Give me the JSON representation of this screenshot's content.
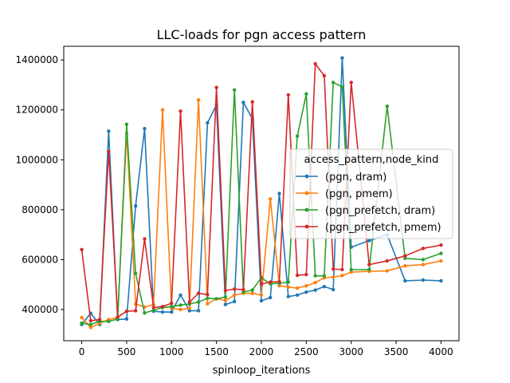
{
  "chart_data": {
    "type": "line",
    "title": "LLC-loads for pgn access pattern",
    "xlabel": "spinloop_iterations",
    "ylabel": "",
    "xlim": [
      -200,
      4200
    ],
    "ylim": [
      275000,
      1455000
    ],
    "xticks": [
      0,
      500,
      1000,
      1500,
      2000,
      2500,
      3000,
      3500,
      4000
    ],
    "xtick_labels": [
      "0",
      "500",
      "1000",
      "1500",
      "2000",
      "2500",
      "3000",
      "3500",
      "4000"
    ],
    "yticks": [
      400000,
      600000,
      800000,
      1000000,
      1200000,
      1400000
    ],
    "ytick_labels": [
      "400000",
      "600000",
      "800000",
      "1000000",
      "1200000",
      "1400000"
    ],
    "grid": false,
    "legend": {
      "title": "access_pattern,node_kind",
      "placement": "center-right"
    },
    "series": [
      {
        "name": "(pgn, dram)",
        "color": "#1f77b4",
        "x": [
          0,
          100,
          200,
          300,
          400,
          500,
          600,
          700,
          800,
          900,
          1000,
          1100,
          1200,
          1300,
          1400,
          1500,
          1600,
          1700,
          1800,
          1900,
          2000,
          2100,
          2200,
          2300,
          2400,
          2500,
          2600,
          2700,
          2800,
          2900,
          3000,
          3200,
          3400,
          3600,
          3800,
          4000
        ],
        "y": [
          340000,
          385000,
          340000,
          1115000,
          360000,
          362000,
          815000,
          1125000,
          393000,
          390000,
          390000,
          458000,
          395000,
          395000,
          1148000,
          1220000,
          420000,
          432000,
          1230000,
          1165000,
          435000,
          448000,
          865000,
          452000,
          458000,
          470000,
          478000,
          492000,
          480000,
          1408000,
          650000,
          676000,
          700000,
          515000,
          518000,
          515000
        ]
      },
      {
        "name": "(pgn, pmem)",
        "color": "#ff7f0e",
        "x": [
          0,
          100,
          200,
          300,
          400,
          500,
          600,
          700,
          800,
          900,
          1000,
          1100,
          1200,
          1300,
          1400,
          1500,
          1600,
          1700,
          1800,
          1900,
          2000,
          2100,
          2200,
          2300,
          2400,
          2500,
          2600,
          2700,
          2800,
          2900,
          3000,
          3200,
          3400,
          3600,
          3800,
          4000
        ],
        "y": [
          368000,
          328000,
          345000,
          360000,
          368000,
          1107000,
          422000,
          410000,
          420000,
          1200000,
          405000,
          400000,
          405000,
          1240000,
          423000,
          443000,
          436000,
          458000,
          465000,
          465000,
          458000,
          843000,
          495000,
          490000,
          486000,
          495000,
          508000,
          527000,
          530000,
          536000,
          550000,
          553000,
          555000,
          575000,
          580000,
          595000
        ]
      },
      {
        "name": "(pgn_prefetch, dram)",
        "color": "#2ca02c",
        "x": [
          0,
          100,
          200,
          300,
          400,
          500,
          600,
          700,
          800,
          900,
          1000,
          1100,
          1200,
          1300,
          1400,
          1500,
          1600,
          1700,
          1800,
          1900,
          2000,
          2100,
          2200,
          2300,
          2400,
          2500,
          2600,
          2700,
          2800,
          2900,
          3000,
          3200,
          3400,
          3600,
          3800,
          4000
        ],
        "y": [
          345000,
          340000,
          353000,
          352000,
          362000,
          1142000,
          545000,
          386000,
          397000,
          408000,
          412000,
          418000,
          422000,
          430000,
          445000,
          443000,
          450000,
          1280000,
          470000,
          478000,
          527000,
          503000,
          505000,
          510000,
          1095000,
          1264000,
          535000,
          535000,
          1310000,
          1292000,
          560000,
          560000,
          1215000,
          605000,
          600000,
          625000
        ]
      },
      {
        "name": "(pgn_prefetch, pmem)",
        "color": "#d62728",
        "x": [
          0,
          100,
          200,
          300,
          400,
          500,
          600,
          700,
          800,
          900,
          1000,
          1100,
          1200,
          1300,
          1400,
          1500,
          1600,
          1700,
          1800,
          1900,
          2000,
          2100,
          2200,
          2300,
          2400,
          2500,
          2600,
          2700,
          2800,
          2900,
          3000,
          3200,
          3400,
          3600,
          3800,
          4000
        ],
        "y": [
          640000,
          355000,
          360000,
          1033000,
          370000,
          393000,
          395000,
          683000,
          408000,
          412000,
          425000,
          1195000,
          430000,
          465000,
          460000,
          1290000,
          476000,
          482000,
          480000,
          1232000,
          502000,
          510000,
          512000,
          1260000,
          537000,
          540000,
          1385000,
          1337000,
          562000,
          560000,
          1310000,
          580000,
          595000,
          615000,
          645000,
          658000
        ]
      }
    ]
  }
}
